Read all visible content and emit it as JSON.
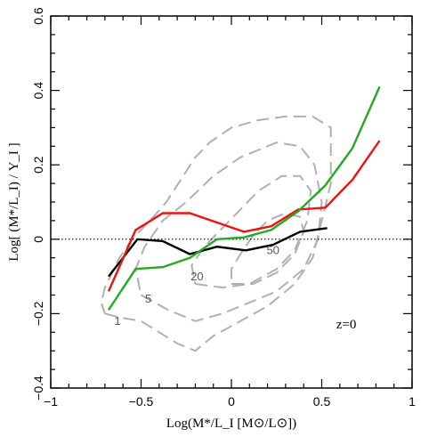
{
  "chart_data": {
    "type": "line",
    "xlabel": "Log(M*/L_I [M⊙/L⊙])",
    "ylabel": "Log[ (M*/L_I) / Υ_I ]",
    "xlim": [
      -1,
      1
    ],
    "ylim": [
      -0.4,
      0.6
    ],
    "xticks": [
      -1,
      -0.5,
      0,
      0.5,
      1
    ],
    "xtick_labels": [
      "−1",
      "−0.5",
      "0",
      "0.5",
      "1"
    ],
    "yticks": [
      -0.4,
      -0.2,
      0,
      0.2,
      0.4,
      0.6
    ],
    "ytick_labels": [
      "−0.4",
      "−0.2",
      "0",
      "0.2",
      "0.4",
      "0.6"
    ],
    "series": [
      {
        "color": "#000000",
        "x": [
          -0.68,
          -0.52,
          -0.38,
          -0.23,
          -0.08,
          0.08,
          0.23,
          0.38,
          0.53
        ],
        "y": [
          -0.1,
          0.0,
          -0.005,
          -0.04,
          -0.02,
          -0.03,
          -0.015,
          0.02,
          0.03
        ]
      },
      {
        "color": "#ee1111",
        "x": [
          -0.68,
          -0.53,
          -0.38,
          -0.23,
          -0.08,
          0.07,
          0.22,
          0.37,
          0.52,
          0.67,
          0.82
        ],
        "y": [
          -0.14,
          0.025,
          0.07,
          0.07,
          0.045,
          0.02,
          0.035,
          0.08,
          0.085,
          0.16,
          0.265
        ]
      },
      {
        "color": "#22aa22",
        "x": [
          -0.68,
          -0.53,
          -0.38,
          -0.23,
          -0.08,
          0.07,
          0.22,
          0.37,
          0.52,
          0.67,
          0.82
        ],
        "y": [
          -0.19,
          -0.08,
          -0.075,
          -0.05,
          0.0,
          0.005,
          0.025,
          0.075,
          0.145,
          0.245,
          0.41
        ]
      }
    ],
    "reference_line": {
      "y": 0,
      "style": "dotted",
      "color": "#000000"
    },
    "contours": [
      {
        "level_label": "1",
        "color": "#b0b0b0",
        "points": [
          [
            -0.7,
            -0.2
          ],
          [
            -0.62,
            -0.21
          ],
          [
            -0.5,
            -0.22
          ],
          [
            -0.4,
            -0.25
          ],
          [
            -0.3,
            -0.28
          ],
          [
            -0.2,
            -0.3
          ],
          [
            -0.1,
            -0.26
          ],
          [
            0.05,
            -0.22
          ],
          [
            0.2,
            -0.18
          ],
          [
            0.35,
            -0.12
          ],
          [
            0.45,
            -0.05
          ],
          [
            0.5,
            0.05
          ],
          [
            0.55,
            0.15
          ],
          [
            0.55,
            0.3
          ],
          [
            0.45,
            0.33
          ],
          [
            0.3,
            0.33
          ],
          [
            0.15,
            0.32
          ],
          [
            0.0,
            0.3
          ],
          [
            -0.12,
            0.26
          ],
          [
            -0.2,
            0.22
          ],
          [
            -0.28,
            0.16
          ],
          [
            -0.36,
            0.1
          ],
          [
            -0.45,
            0.05
          ],
          [
            -0.55,
            0.0
          ],
          [
            -0.62,
            -0.05
          ],
          [
            -0.7,
            -0.13
          ],
          [
            -0.72,
            -0.17
          ],
          [
            -0.7,
            -0.2
          ]
        ],
        "label_at": [
          -0.63,
          -0.23
        ]
      },
      {
        "level_label": "5",
        "color": "#b0b0b0",
        "points": [
          [
            -0.5,
            -0.15
          ],
          [
            -0.35,
            -0.19
          ],
          [
            -0.2,
            -0.22
          ],
          [
            -0.05,
            -0.2
          ],
          [
            0.1,
            -0.17
          ],
          [
            0.25,
            -0.14
          ],
          [
            0.4,
            -0.08
          ],
          [
            0.48,
            0.0
          ],
          [
            0.5,
            0.1
          ],
          [
            0.46,
            0.2
          ],
          [
            0.38,
            0.25
          ],
          [
            0.25,
            0.26
          ],
          [
            0.15,
            0.24
          ],
          [
            0.05,
            0.22
          ],
          [
            -0.1,
            0.17
          ],
          [
            -0.25,
            0.1
          ],
          [
            -0.38,
            0.05
          ],
          [
            -0.48,
            -0.02
          ],
          [
            -0.53,
            -0.08
          ],
          [
            -0.5,
            -0.15
          ]
        ],
        "label_at": [
          -0.46,
          -0.17
        ]
      },
      {
        "level_label": "20",
        "color": "#b0b0b0",
        "points": [
          [
            -0.2,
            -0.12
          ],
          [
            -0.05,
            -0.13
          ],
          [
            0.1,
            -0.12
          ],
          [
            0.25,
            -0.08
          ],
          [
            0.35,
            -0.03
          ],
          [
            0.42,
            0.05
          ],
          [
            0.44,
            0.13
          ],
          [
            0.38,
            0.17
          ],
          [
            0.28,
            0.17
          ],
          [
            0.15,
            0.13
          ],
          [
            0.05,
            0.08
          ],
          [
            -0.05,
            0.03
          ],
          [
            -0.15,
            -0.02
          ],
          [
            -0.22,
            -0.07
          ],
          [
            -0.2,
            -0.12
          ]
        ],
        "label_at": [
          -0.19,
          -0.11
        ]
      },
      {
        "level_label": "50",
        "color": "#b0b0b0",
        "points": [
          [
            0.0,
            -0.12
          ],
          [
            0.12,
            -0.12
          ],
          [
            0.25,
            -0.09
          ],
          [
            0.35,
            -0.04
          ],
          [
            0.4,
            0.02
          ],
          [
            0.38,
            0.06
          ],
          [
            0.3,
            0.07
          ],
          [
            0.2,
            0.05
          ],
          [
            0.12,
            0.01
          ],
          [
            0.05,
            -0.04
          ],
          [
            0.0,
            -0.08
          ],
          [
            0.0,
            -0.12
          ]
        ],
        "label_at": [
          0.23,
          -0.04
        ]
      }
    ],
    "annotations": [
      {
        "text": "z=0",
        "at": [
          0.58,
          -0.24
        ]
      }
    ]
  }
}
